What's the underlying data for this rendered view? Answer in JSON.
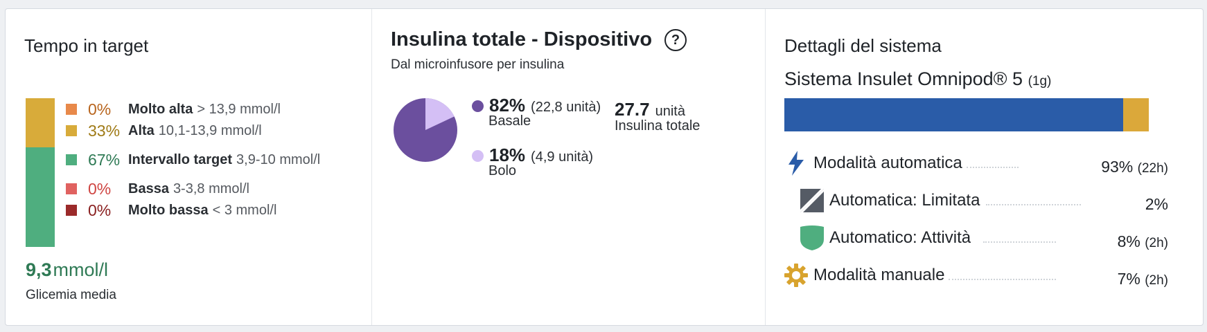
{
  "tir": {
    "title": "Tempo in target",
    "colors": {
      "very_high": "#e8894a",
      "high": "#d8ab3a",
      "target": "#4fae7f",
      "low": "#e06260",
      "very_low": "#9b2a2a"
    },
    "text_colors": {
      "very_high": "#b8651e",
      "high": "#9f7a16",
      "target": "#2f7a55",
      "low": "#cf4542",
      "very_low": "#8a2020"
    },
    "bar_fractions": {
      "high": 0.33,
      "target": 0.67
    },
    "rows": [
      {
        "pct": "0%",
        "label": "Molto alta",
        "range": "> 13,9 mmol/l"
      },
      {
        "pct": "33%",
        "label": "Alta",
        "range": "10,1-13,9 mmol/l"
      },
      {
        "pct": "67%",
        "label": "Intervallo target",
        "range": "3,9-10 mmol/l"
      },
      {
        "pct": "0%",
        "label": "Bassa",
        "range": "3-3,8 mmol/l"
      },
      {
        "pct": "0%",
        "label": "Molto bassa",
        "range": "< 3 mmol/l"
      }
    ],
    "avg_value": "9,3",
    "avg_unit": "mmol/l",
    "avg_label": "Glicemia media"
  },
  "insulin": {
    "title": "Insulina totale - Dispositivo",
    "help_icon": "question-circle-icon",
    "help_glyph": "?",
    "subtitle": "Dal microinfusore per insulina",
    "basal_color": "#6b4f9e",
    "bolus_color": "#d4bff5",
    "basal_fraction": 0.82,
    "basal_pct": "82%",
    "basal_units": "(22,8 unità)",
    "basal_label": "Basale",
    "bolus_pct": "18%",
    "bolus_units": "(4,9 unità)",
    "bolus_label": "Bolo",
    "total_value": "27.7",
    "total_unit": "unità",
    "total_label": "Insulina totale"
  },
  "system": {
    "title": "Dettagli del sistema",
    "name": "Sistema Insulet Omnipod® 5",
    "duration": "(1g)",
    "bar_colors": {
      "auto": "#2a5ca8",
      "manual": "#dba83a"
    },
    "auto_fraction": 0.93,
    "modes": [
      {
        "icon": "lightning-icon",
        "label": "Modalità automatica",
        "value": "93%",
        "detail": "(22h)"
      },
      {
        "icon": "limited-icon",
        "label": "Automatica: Limitata",
        "value": "2%",
        "detail": ""
      },
      {
        "icon": "shield-icon",
        "label": "Automatico: Attività",
        "value": "8%",
        "detail": "(2h)"
      },
      {
        "icon": "gear-icon",
        "label": "Modalità manuale",
        "value": "7%",
        "detail": "(2h)"
      }
    ]
  }
}
